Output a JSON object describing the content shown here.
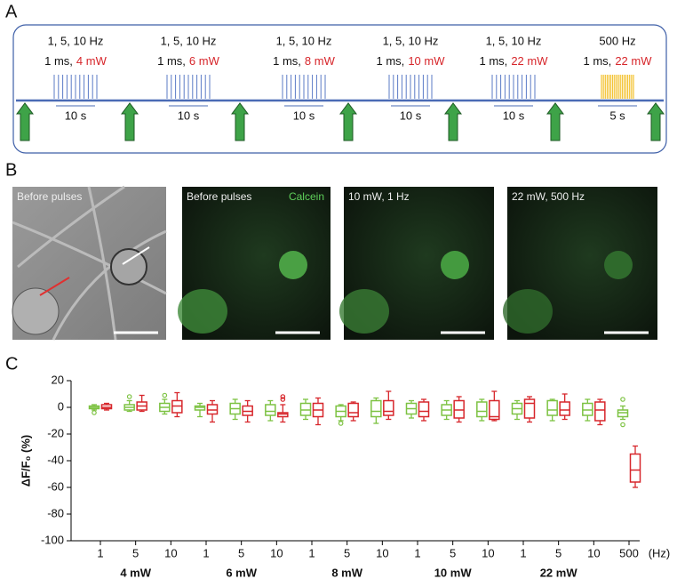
{
  "panel_a": {
    "label": "A",
    "stages": [
      {
        "freq": "1, 5, 10 Hz",
        "duration": "1 ms,",
        "power": "4 mW",
        "interval": "10 s"
      },
      {
        "freq": "1, 5, 10 Hz",
        "duration": "1 ms,",
        "power": "6 mW",
        "interval": "10 s"
      },
      {
        "freq": "1, 5, 10 Hz",
        "duration": "1 ms,",
        "power": "8 mW",
        "interval": "10 s"
      },
      {
        "freq": "1, 5, 10 Hz",
        "duration": "1 ms,",
        "power": "10 mW",
        "interval": "10 s"
      },
      {
        "freq": "1, 5, 10 Hz",
        "duration": "1 ms,",
        "power": "22 mW",
        "interval": "10 s"
      },
      {
        "freq": "500 Hz",
        "duration": "1 ms,",
        "power": "22 mW",
        "interval": "5 s"
      }
    ]
  },
  "panel_b": {
    "label": "B",
    "images": [
      {
        "caption": "Before pulses"
      },
      {
        "caption": "Before pulses",
        "stain": "Calcein"
      },
      {
        "caption": "10 mW, 1 Hz"
      },
      {
        "caption": "22 mW, 500 Hz"
      }
    ]
  },
  "chart_data": {
    "type": "box",
    "label": "C",
    "y_label": "ΔF/F₀ (%)",
    "categories": [
      "1",
      "5",
      "10",
      "1",
      "5",
      "10",
      "1",
      "5",
      "10",
      "1",
      "5",
      "10",
      "1",
      "5",
      "10",
      "500"
    ],
    "x_unit": "(Hz)",
    "groups": [
      "4 mW",
      "6 mW",
      "8 mW",
      "10 mW",
      "22 mW"
    ],
    "ylim": [
      -100,
      20
    ],
    "yticks": [
      20,
      0,
      -20,
      -40,
      -60,
      -80,
      -100
    ],
    "series": [
      {
        "color": "#7dc242",
        "boxes": [
          {
            "min": -2,
            "q1": -1,
            "median": 0,
            "q3": 1,
            "max": 2,
            "outliers": [
              -4
            ]
          },
          {
            "min": -3,
            "q1": -2,
            "median": 0,
            "q3": 2,
            "max": 5,
            "outliers": [
              8
            ]
          },
          {
            "min": -5,
            "q1": -3,
            "median": 0,
            "q3": 3,
            "max": 6,
            "outliers": [
              9
            ]
          },
          {
            "min": -7,
            "q1": -2,
            "median": 0,
            "q3": 1,
            "max": 3,
            "outliers": []
          },
          {
            "min": -9,
            "q1": -5,
            "median": -1,
            "q3": 3,
            "max": 6,
            "outliers": []
          },
          {
            "min": -10,
            "q1": -6,
            "median": -3,
            "q3": 2,
            "max": 5,
            "outliers": []
          },
          {
            "min": -9,
            "q1": -6,
            "median": -2,
            "q3": 3,
            "max": 6,
            "outliers": []
          },
          {
            "min": -10,
            "q1": -7,
            "median": -3,
            "q3": 1,
            "max": 2,
            "outliers": [
              -12
            ]
          },
          {
            "min": -12,
            "q1": -7,
            "median": -3,
            "q3": 5,
            "max": 7,
            "outliers": []
          },
          {
            "min": -8,
            "q1": -5,
            "median": -1,
            "q3": 3,
            "max": 5,
            "outliers": []
          },
          {
            "min": -9,
            "q1": -6,
            "median": -2,
            "q3": 2,
            "max": 5,
            "outliers": []
          },
          {
            "min": -10,
            "q1": -7,
            "median": -3,
            "q3": 4,
            "max": 6,
            "outliers": []
          },
          {
            "min": -9,
            "q1": -5,
            "median": -1,
            "q3": 3,
            "max": 5,
            "outliers": []
          },
          {
            "min": -10,
            "q1": -6,
            "median": -2,
            "q3": 5,
            "max": 6,
            "outliers": []
          },
          {
            "min": -10,
            "q1": -6,
            "median": -2,
            "q3": 3,
            "max": 6,
            "outliers": []
          },
          {
            "min": -9,
            "q1": -7,
            "median": -4,
            "q3": -2,
            "max": 1,
            "outliers": [
              6,
              -13
            ]
          }
        ]
      },
      {
        "color": "#d7262b",
        "boxes": [
          {
            "min": -2,
            "q1": -1,
            "median": 0,
            "q3": 2,
            "max": 3,
            "outliers": []
          },
          {
            "min": -3,
            "q1": -2,
            "median": 1,
            "q3": 4,
            "max": 9,
            "outliers": []
          },
          {
            "min": -7,
            "q1": -4,
            "median": 1,
            "q3": 5,
            "max": 11,
            "outliers": []
          },
          {
            "min": -11,
            "q1": -5,
            "median": -2,
            "q3": 2,
            "max": 5,
            "outliers": []
          },
          {
            "min": -11,
            "q1": -6,
            "median": -3,
            "q3": 1,
            "max": 5,
            "outliers": []
          },
          {
            "min": -11,
            "q1": -7,
            "median": -5,
            "q3": -4,
            "max": 2,
            "outliers": [
              6,
              8
            ]
          },
          {
            "min": -13,
            "q1": -7,
            "median": -2,
            "q3": 3,
            "max": 7,
            "outliers": []
          },
          {
            "min": -10,
            "q1": -7,
            "median": -4,
            "q3": 3,
            "max": 4,
            "outliers": []
          },
          {
            "min": -9,
            "q1": -6,
            "median": -3,
            "q3": 5,
            "max": 12,
            "outliers": []
          },
          {
            "min": -10,
            "q1": -7,
            "median": -3,
            "q3": 4,
            "max": 6,
            "outliers": []
          },
          {
            "min": -11,
            "q1": -8,
            "median": -2,
            "q3": 5,
            "max": 8,
            "outliers": []
          },
          {
            "min": -10,
            "q1": -9,
            "median": -7,
            "q3": 5,
            "max": 12,
            "outliers": []
          },
          {
            "min": -11,
            "q1": -8,
            "median": 3,
            "q3": 6,
            "max": 8,
            "outliers": []
          },
          {
            "min": -9,
            "q1": -6,
            "median": -2,
            "q3": 4,
            "max": 10,
            "outliers": []
          },
          {
            "min": -13,
            "q1": -10,
            "median": -2,
            "q3": 4,
            "max": 6,
            "outliers": []
          },
          {
            "min": -60,
            "q1": -56,
            "median": -47,
            "q3": -35,
            "max": -29,
            "outliers": []
          }
        ]
      }
    ]
  }
}
